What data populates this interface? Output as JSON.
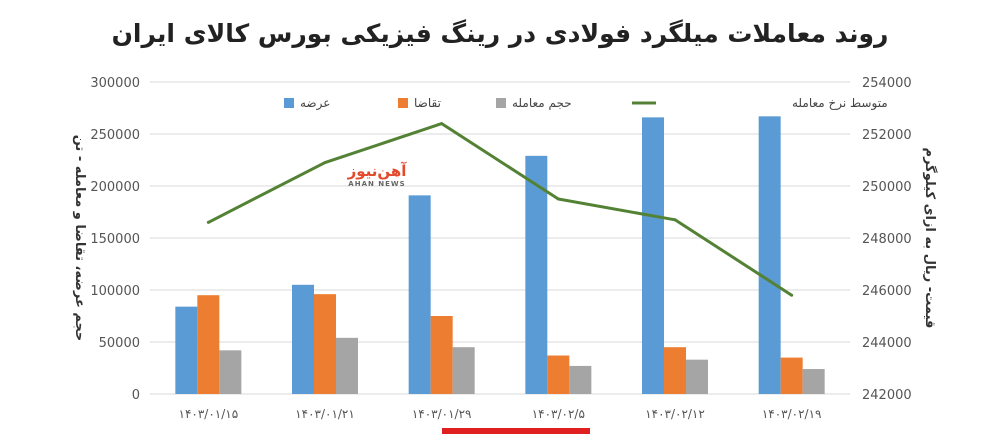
{
  "chart_data": {
    "type": "bar",
    "title": "روند معاملات میلگرد فولادی در رینگ فیزیکی بورس کالای ایران",
    "categories": [
      "۱۴۰۳/۰۱/۱۵",
      "۱۴۰۳/۰۱/۲۱",
      "۱۴۰۳/۰۱/۲۹",
      "۱۴۰۳/۰۲/۵",
      "۱۴۰۳/۰۲/۱۲",
      "۱۴۰۳/۰۲/۱۹"
    ],
    "series": [
      {
        "name": "عرضه",
        "type": "bar",
        "axis": "left",
        "color": "#5b9bd5",
        "values": [
          84000,
          105000,
          191000,
          229000,
          266000,
          267000
        ]
      },
      {
        "name": "تقاضا",
        "type": "bar",
        "axis": "left",
        "color": "#ed7d31",
        "values": [
          95000,
          96000,
          75000,
          37000,
          45000,
          35000
        ]
      },
      {
        "name": "حجم معامله",
        "type": "bar",
        "axis": "left",
        "color": "#a5a5a5",
        "values": [
          42000,
          54000,
          45000,
          27000,
          33000,
          24000
        ]
      },
      {
        "name": "متوسط نرخ معامله",
        "type": "line",
        "axis": "right",
        "color": "#548235",
        "values": [
          248600,
          250900,
          252400,
          249500,
          248700,
          245800
        ]
      }
    ],
    "y_left": {
      "label": "حجم عرضه، تقاضا و معامله - تن",
      "lim": [
        0,
        300000
      ],
      "ticks": [
        "0",
        "50000",
        "100000",
        "150000",
        "200000",
        "250000",
        "300000"
      ]
    },
    "y_right": {
      "label": "قیمت- ریال به ازای کیلوگرم",
      "lim": [
        242000,
        254000
      ],
      "ticks": [
        "242000",
        "244000",
        "246000",
        "248000",
        "250000",
        "252000",
        "254000"
      ]
    },
    "grid": true,
    "legend_position": "top"
  },
  "watermark": {
    "main": "آهن‌نیوز",
    "sub": "AHAN NEWS"
  },
  "accent_color": "#e02020"
}
